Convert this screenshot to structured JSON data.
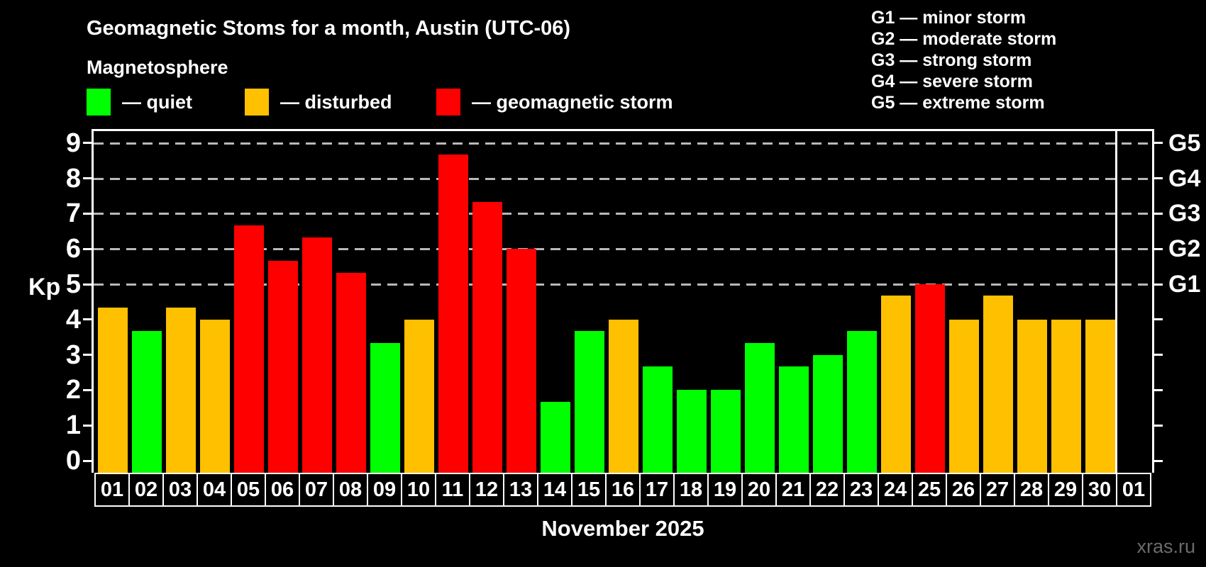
{
  "header": {
    "title": "Geomagnetic Stoms for a month, Austin (UTC-06)",
    "subtitle": "Magnetosphere"
  },
  "legend": {
    "items": [
      {
        "status": "quiet",
        "label": "— quiet"
      },
      {
        "status": "disturbed",
        "label": "— disturbed"
      },
      {
        "status": "storm",
        "label": "— geomagnetic storm"
      }
    ]
  },
  "g_legend": {
    "lines": [
      "G1 — minor storm",
      "G2 — moderate storm",
      "G3 — strong storm",
      "G4 — severe storm",
      "G5 — extreme storm"
    ]
  },
  "colors": {
    "quiet": "#00ff00",
    "disturbed": "#ffc000",
    "storm": "#ff0000",
    "axis": "#ffffff",
    "grid": "#b9b9b9",
    "watermark": "#6b6b6b",
    "background": "#000000"
  },
  "chart_data": {
    "type": "bar",
    "title": "Geomagnetic Stoms for a month, Austin (UTC-06)",
    "subtitle": "Magnetosphere",
    "xlabel": "November 2025",
    "ylabel": "Kp",
    "ylim": [
      0,
      9.35
    ],
    "yticks": [
      0,
      1,
      2,
      3,
      4,
      5,
      6,
      7,
      8,
      9
    ],
    "gridlines_kp": [
      5,
      6,
      7,
      8,
      9
    ],
    "grid": "horizontal dashed lines at Kp 5–9 only",
    "legend_position": "top-left",
    "right_axis": [
      {
        "kp": 5,
        "label": "G1"
      },
      {
        "kp": 6,
        "label": "G2"
      },
      {
        "kp": 7,
        "label": "G3"
      },
      {
        "kp": 8,
        "label": "G4"
      },
      {
        "kp": 9,
        "label": "G5"
      }
    ],
    "categories": [
      "01",
      "02",
      "03",
      "04",
      "05",
      "06",
      "07",
      "08",
      "09",
      "10",
      "11",
      "12",
      "13",
      "14",
      "15",
      "16",
      "17",
      "18",
      "19",
      "20",
      "21",
      "22",
      "23",
      "24",
      "25",
      "26",
      "27",
      "28",
      "29",
      "30",
      "01"
    ],
    "values": [
      4.33,
      3.67,
      4.33,
      4.0,
      6.67,
      5.67,
      6.33,
      5.33,
      3.33,
      4.0,
      8.67,
      7.33,
      6.0,
      1.67,
      3.67,
      4.0,
      2.67,
      2.0,
      2.0,
      3.33,
      2.67,
      3.0,
      3.67,
      4.67,
      5.0,
      4.0,
      4.67,
      4.0,
      4.0,
      4.0,
      null
    ],
    "statuses": [
      "disturbed",
      "quiet",
      "disturbed",
      "disturbed",
      "storm",
      "storm",
      "storm",
      "storm",
      "quiet",
      "disturbed",
      "storm",
      "storm",
      "storm",
      "quiet",
      "quiet",
      "disturbed",
      "quiet",
      "quiet",
      "quiet",
      "quiet",
      "quiet",
      "quiet",
      "quiet",
      "disturbed",
      "storm",
      "disturbed",
      "disturbed",
      "disturbed",
      "disturbed",
      "disturbed",
      null
    ]
  },
  "watermark": "xras.ru"
}
